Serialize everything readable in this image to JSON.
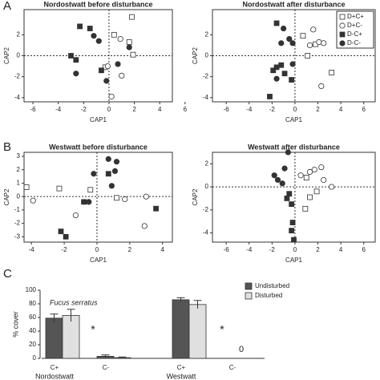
{
  "panel_labels": [
    "A",
    "B",
    "C"
  ],
  "chart_data": [
    {
      "type": "scatter",
      "title": "Nordostwatt before disturbance",
      "xlabel": "CAP1",
      "ylabel": "CAP2",
      "xlim": [
        -6.7,
        5.0
      ],
      "ylim": [
        -4.4,
        4.4
      ],
      "xticks": [
        -6,
        -4,
        -2,
        0,
        2,
        4,
        6
      ],
      "yticks": [
        -4,
        -2,
        0,
        2
      ],
      "series": [
        {
          "marker": "square",
          "filled": false,
          "x": [
            0.4,
            1.8,
            1.6,
            -0.3,
            1.9
          ],
          "values": [
            2.0,
            3.7,
            1.3,
            -1.1,
            0.1
          ]
        },
        {
          "marker": "circle",
          "filled": false,
          "x": [
            0.9,
            1.0,
            0.2,
            -0.1
          ],
          "values": [
            1.6,
            -1.9,
            -3.9,
            -1.0
          ]
        },
        {
          "marker": "square",
          "filled": true,
          "x": [
            -2.3,
            -1.5,
            -3.0,
            -2.6,
            -0.6
          ],
          "values": [
            2.8,
            2.6,
            0.0,
            -0.4,
            -1.4
          ]
        },
        {
          "marker": "circle",
          "filled": true,
          "x": [
            -1.2,
            -0.8,
            -2.6,
            -0.2,
            0.7,
            1.6
          ],
          "values": [
            1.9,
            1.4,
            -1.7,
            -2.4,
            -0.8,
            0.8
          ]
        }
      ]
    },
    {
      "type": "scatter",
      "title": "Nordostwatt after disturbance",
      "xlabel": "CAP1",
      "ylabel": "CAP2",
      "xlim": [
        -7.2,
        7.0
      ],
      "ylim": [
        -4.4,
        4.4
      ],
      "xticks": [
        -6,
        -4,
        -2,
        0,
        2,
        4,
        6
      ],
      "yticks": [
        -4,
        -2,
        0,
        2
      ],
      "series": [
        {
          "name": "D+C+",
          "marker": "square",
          "filled": false,
          "x": [
            0.7,
            1.8,
            3.2,
            1.1
          ],
          "values": [
            1.9,
            1.1,
            -1.6,
            0.0
          ]
        },
        {
          "name": "D+C-",
          "marker": "circle",
          "filled": false,
          "x": [
            2.1,
            2.5,
            1.6,
            2.3,
            1.3
          ],
          "values": [
            1.3,
            1.2,
            2.5,
            -2.9,
            1.0
          ]
        },
        {
          "name": "D-C+",
          "marker": "square",
          "filled": true,
          "x": [
            -1.6,
            -1.9,
            -0.9,
            -1.6,
            -1.2,
            -2.2,
            -0.3
          ],
          "values": [
            3.1,
            -1.4,
            -1.7,
            -1.1,
            -0.9,
            -3.9,
            -2.3
          ]
        },
        {
          "name": "D-C-",
          "marker": "circle",
          "filled": true,
          "x": [
            -1.0,
            -0.5,
            -1.2,
            -1.6,
            -0.2,
            -0.2
          ],
          "values": [
            2.6,
            1.6,
            1.2,
            -2.2,
            1.2,
            -0.8
          ]
        }
      ]
    },
    {
      "type": "scatter",
      "title": "Westwatt before disturbance",
      "xlabel": "CAP1",
      "ylabel": "CAP2",
      "xlim": [
        -4.45,
        4.6
      ],
      "ylim": [
        -3.4,
        3.3
      ],
      "xticks": [
        -4,
        -2,
        0,
        2,
        4
      ],
      "yticks": [
        -3,
        -2,
        -1,
        0,
        1,
        2,
        3
      ],
      "series": [
        {
          "marker": "square",
          "filled": false,
          "x": [
            -4.3,
            -2.3,
            1.2,
            -0.4
          ],
          "values": [
            0.7,
            0.6,
            -0.1,
            0.5
          ]
        },
        {
          "marker": "circle",
          "filled": false,
          "x": [
            -3.9,
            -1.3,
            2.9,
            3.0,
            1.7
          ],
          "values": [
            -0.3,
            -1.4,
            -2.2,
            0.0,
            -0.2
          ]
        },
        {
          "marker": "square",
          "filled": true,
          "x": [
            -0.8,
            -2.2,
            0.7,
            3.6,
            -1.9
          ],
          "values": [
            -0.4,
            -2.6,
            1.7,
            -0.9,
            -3.0
          ]
        },
        {
          "marker": "circle",
          "filled": true,
          "x": [
            0.7,
            1.2,
            1.1,
            -0.2,
            -0.5,
            0.9
          ],
          "values": [
            2.8,
            2.6,
            1.9,
            1.7,
            -0.4,
            0.8
          ]
        }
      ]
    },
    {
      "type": "scatter",
      "title": "Westwatt after disturbance",
      "xlabel": "CAP1",
      "ylabel": "CAP2",
      "xlim": [
        -7.2,
        7.0
      ],
      "ylim": [
        -4.8,
        3.0
      ],
      "xticks": [
        -6,
        -4,
        -2,
        0,
        2,
        4,
        6
      ],
      "yticks": [
        -4,
        -2,
        0,
        2
      ],
      "series": [
        {
          "marker": "square",
          "filled": false,
          "x": [
            1.0,
            1.3,
            0.9,
            1.9
          ],
          "values": [
            0.8,
            -0.9,
            -1.9,
            -0.4
          ]
        },
        {
          "marker": "circle",
          "filled": false,
          "x": [
            1.7,
            2.3,
            2.5,
            1.3,
            3.2,
            0.5
          ],
          "values": [
            1.5,
            1.7,
            0.6,
            1.3,
            0.0,
            1.0
          ]
        },
        {
          "marker": "square",
          "filled": true,
          "x": [
            -0.3,
            -0.2,
            -0.3,
            -0.1,
            -0.5,
            -0.7
          ],
          "values": [
            -1.5,
            -3.1,
            -3.8,
            -4.6,
            -0.6,
            -1.0
          ]
        },
        {
          "marker": "circle",
          "filled": true,
          "x": [
            -1.8,
            -1.5,
            -0.6,
            -1.1,
            -0.9
          ],
          "values": [
            1.0,
            0.6,
            3.0,
            0.3,
            1.6
          ]
        }
      ]
    },
    {
      "type": "bar",
      "ylabel": "% cover",
      "ylim": [
        0,
        100
      ],
      "yticks": [
        0,
        20,
        40,
        60,
        80,
        100
      ],
      "categories": [
        "C+",
        "C-",
        "C+",
        "C-"
      ],
      "groups": [
        "Nordostwatt",
        "Westwatt"
      ],
      "series": [
        {
          "name": "Undisturbed",
          "color": "#555555",
          "values": [
            59,
            3,
            86,
            0
          ],
          "errors": [
            6,
            2,
            3,
            0
          ]
        },
        {
          "name": "Disturbed",
          "color": "#e0e0e0",
          "values": [
            63,
            1,
            79,
            0
          ],
          "errors": [
            9,
            1,
            6,
            0
          ]
        }
      ],
      "annotations": [
        "Fucus serratus",
        "*",
        "*",
        "0"
      ]
    }
  ]
}
